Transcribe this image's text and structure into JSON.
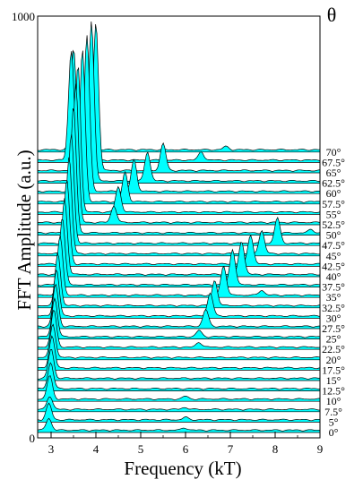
{
  "chart_data": {
    "type": "area",
    "style": "waterfall",
    "xlabel": "Frequency (kT)",
    "ylabel": "FFT Amplitude (a.u.)",
    "series_label_header": "θ",
    "xlim": [
      2.7,
      9
    ],
    "ylim": [
      0,
      1000
    ],
    "xticks": [
      3,
      4,
      5,
      6,
      7,
      8,
      9
    ],
    "yticks": [
      0,
      1000
    ],
    "fill_color": "#00ffff",
    "line_color": "#000000",
    "series": [
      {
        "name": "0°",
        "peaks": [
          [
            2.95,
            28
          ],
          [
            5.98,
            6
          ]
        ]
      },
      {
        "name": "5°",
        "peaks": [
          [
            2.95,
            38
          ],
          [
            6.0,
            6
          ]
        ]
      },
      {
        "name": "7.5°",
        "peaks": [
          [
            2.97,
            32
          ],
          [
            5.98,
            5
          ]
        ]
      },
      {
        "name": "10°",
        "peaks": [
          [
            2.97,
            55
          ],
          [
            6.0,
            7
          ]
        ]
      },
      {
        "name": "12.5°",
        "peaks": [
          [
            2.99,
            62
          ]
        ]
      },
      {
        "name": "15°",
        "peaks": [
          [
            3.0,
            70
          ]
        ]
      },
      {
        "name": "17.5°",
        "peaks": [
          [
            3.02,
            75
          ]
        ]
      },
      {
        "name": "20°",
        "peaks": [
          [
            3.04,
            80
          ]
        ]
      },
      {
        "name": "22.5°",
        "peaks": [
          [
            3.06,
            88
          ],
          [
            6.3,
            12
          ]
        ]
      },
      {
        "name": "25°",
        "peaks": [
          [
            3.08,
            92
          ],
          [
            6.3,
            15
          ]
        ]
      },
      {
        "name": "27.5°",
        "peaks": [
          [
            3.1,
            100
          ],
          [
            6.45,
            40
          ]
        ]
      },
      {
        "name": "30°",
        "peaks": [
          [
            3.12,
            110
          ],
          [
            6.55,
            55
          ]
        ]
      },
      {
        "name": "32.5°",
        "peaks": [
          [
            3.15,
            125
          ],
          [
            6.65,
            60
          ]
        ]
      },
      {
        "name": "35°",
        "peaks": [
          [
            3.2,
            140
          ],
          [
            6.85,
            70
          ],
          [
            7.7,
            12
          ]
        ]
      },
      {
        "name": "37.5°",
        "peaks": [
          [
            3.25,
            160
          ],
          [
            7.05,
            85
          ]
        ]
      },
      {
        "name": "40°",
        "peaks": [
          [
            3.3,
            180
          ],
          [
            7.25,
            80
          ]
        ]
      },
      {
        "name": "42.5°",
        "peaks": [
          [
            3.35,
            200
          ],
          [
            7.45,
            70
          ]
        ]
      },
      {
        "name": "45°",
        "peaks": [
          [
            3.4,
            230
          ],
          [
            7.7,
            55
          ]
        ]
      },
      {
        "name": "47.5°",
        "peaks": [
          [
            3.45,
            260
          ],
          [
            8.05,
            60
          ]
        ]
      },
      {
        "name": "50°",
        "peaks": [
          [
            3.5,
            300
          ],
          [
            8.8,
            8
          ]
        ]
      },
      {
        "name": "52.5°",
        "peaks": [
          [
            3.55,
            330
          ],
          [
            4.4,
            40
          ]
        ]
      },
      {
        "name": "55°",
        "peaks": [
          [
            3.6,
            350
          ],
          [
            4.5,
            60
          ]
        ]
      },
      {
        "name": "57.5°",
        "peaks": [
          [
            3.7,
            360
          ],
          [
            4.65,
            70
          ]
        ]
      },
      {
        "name": "60°",
        "peaks": [
          [
            3.8,
            370
          ],
          [
            4.85,
            75
          ]
        ]
      },
      {
        "name": "62.5°",
        "peaks": [
          [
            3.9,
            380
          ],
          [
            5.15,
            70
          ]
        ]
      },
      {
        "name": "65°",
        "peaks": [
          [
            4.0,
            350
          ],
          [
            5.5,
            65
          ]
        ]
      },
      {
        "name": "67.5°",
        "peaks": [
          [
            3.45,
            260
          ],
          [
            6.35,
            20
          ]
        ]
      },
      {
        "name": "70°",
        "peaks": [
          [
            3.5,
            240
          ],
          [
            6.9,
            8
          ]
        ]
      }
    ]
  }
}
